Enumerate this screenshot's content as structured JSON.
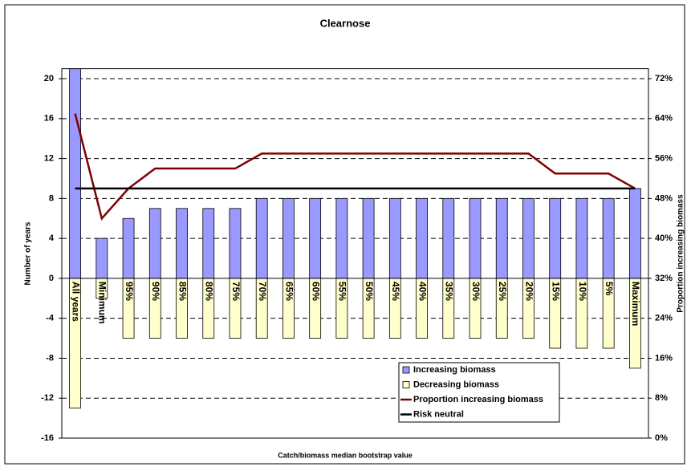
{
  "chart_data": {
    "type": "bar",
    "title": "Clearnose",
    "xlabel": "Catch/biomass median bootstrap value",
    "ylabel": "Number of years",
    "y2label": "Proportion increasing biomass",
    "categories": [
      "All years",
      "Minimum",
      "95%",
      "90%",
      "85%",
      "80%",
      "75%",
      "70%",
      "65%",
      "60%",
      "55%",
      "50%",
      "45%",
      "40%",
      "35%",
      "30%",
      "25%",
      "20%",
      "15%",
      "10%",
      "5%",
      "Maximum"
    ],
    "series": [
      {
        "name": "Increasing biomass",
        "type": "bar",
        "color": "#9999ff",
        "values": [
          21,
          4,
          6,
          7,
          7,
          7,
          7,
          8,
          8,
          8,
          8,
          8,
          8,
          8,
          8,
          8,
          8,
          8,
          8,
          8,
          8,
          9
        ]
      },
      {
        "name": "Decreasing biomass",
        "type": "bar",
        "color": "#ffffcc",
        "values": [
          -13,
          -2,
          -6,
          -6,
          -6,
          -6,
          -6,
          -6,
          -6,
          -6,
          -6,
          -6,
          -6,
          -6,
          -6,
          -6,
          -6,
          -6,
          -7,
          -7,
          -7,
          -9
        ]
      },
      {
        "name": "Proportion increasing biomass",
        "type": "line",
        "axis": "y2",
        "color": "#800000",
        "values": [
          65,
          44,
          50,
          54,
          54,
          54,
          54,
          57,
          57,
          57,
          57,
          57,
          57,
          57,
          57,
          57,
          57,
          57,
          53,
          53,
          53,
          50
        ]
      },
      {
        "name": "Risk neutral",
        "type": "line",
        "axis": "y2",
        "color": "#000000",
        "values": [
          50,
          50,
          50,
          50,
          50,
          50,
          50,
          50,
          50,
          50,
          50,
          50,
          50,
          50,
          50,
          50,
          50,
          50,
          50,
          50,
          50,
          50
        ]
      }
    ],
    "ylim": [
      -16,
      21
    ],
    "yticks": [
      -16,
      -12,
      -8,
      -4,
      0,
      4,
      8,
      12,
      16,
      20
    ],
    "y2lim": [
      0,
      74
    ],
    "y2ticks": [
      {
        "value": 0,
        "label": "0%"
      },
      {
        "value": 8,
        "label": "8%"
      },
      {
        "value": 16,
        "label": "16%"
      },
      {
        "value": 24,
        "label": "24%"
      },
      {
        "value": 32,
        "label": "32%"
      },
      {
        "value": 40,
        "label": "40%"
      },
      {
        "value": 48,
        "label": "48%"
      },
      {
        "value": 56,
        "label": "56%"
      },
      {
        "value": 64,
        "label": "64%"
      },
      {
        "value": 72,
        "label": "72%"
      }
    ],
    "grid": true,
    "legend": "lower right"
  }
}
